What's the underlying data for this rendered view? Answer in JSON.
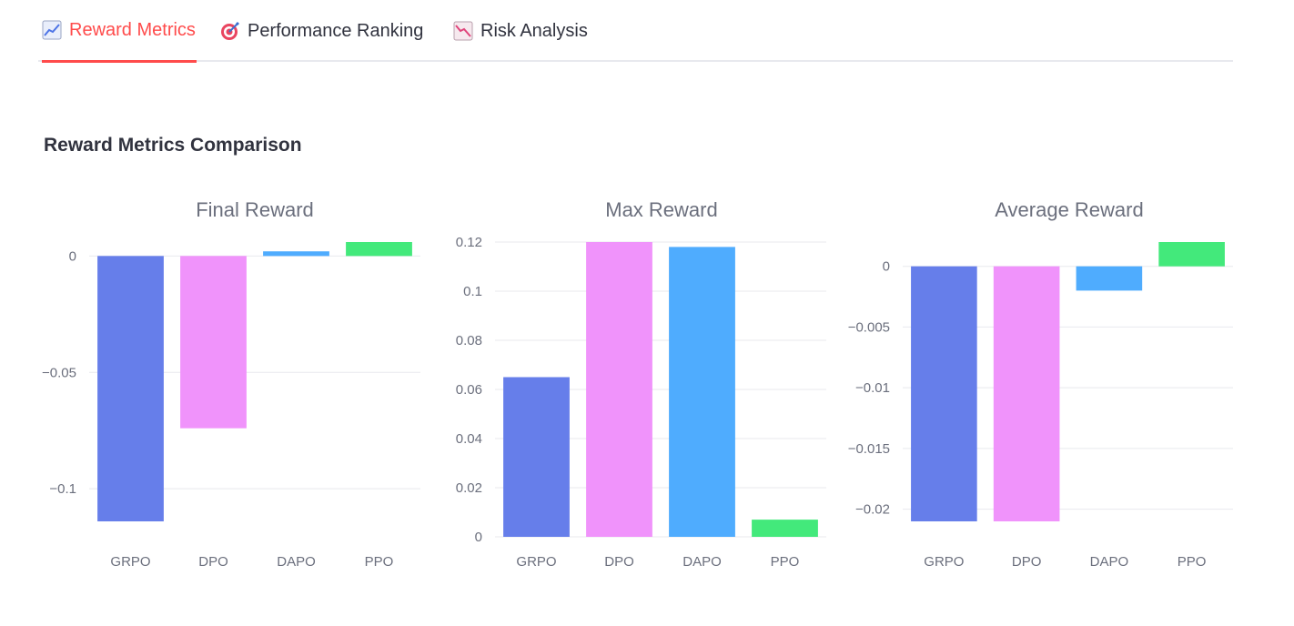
{
  "tabs": [
    {
      "label": "Reward Metrics",
      "icon": "chart-increasing-icon",
      "active": true
    },
    {
      "label": "Performance Ranking",
      "icon": "target-icon",
      "active": false
    },
    {
      "label": "Risk Analysis",
      "icon": "chart-decreasing-icon",
      "active": false
    }
  ],
  "section_title": "Reward Metrics Comparison",
  "colors": {
    "GRPO": "#667eea",
    "DPO": "#f093fb",
    "DAPO": "#4facfe",
    "PPO": "#43e97b",
    "accent": "#ff4b4b"
  },
  "chart_data": [
    {
      "type": "bar",
      "title": "Final Reward",
      "categories": [
        "GRPO",
        "DPO",
        "DAPO",
        "PPO"
      ],
      "values": [
        -0.114,
        -0.074,
        0.002,
        0.006
      ],
      "ylim": [
        -0.114,
        0.006
      ],
      "yticks": [
        0,
        -0.05,
        -0.1
      ],
      "ytick_labels": [
        "0",
        "−0.05",
        "−0.1"
      ],
      "grid": true,
      "xlabel": "",
      "ylabel": ""
    },
    {
      "type": "bar",
      "title": "Max Reward",
      "categories": [
        "GRPO",
        "DPO",
        "DAPO",
        "PPO"
      ],
      "values": [
        0.065,
        0.12,
        0.118,
        0.007
      ],
      "ylim": [
        0,
        0.12
      ],
      "yticks": [
        0,
        0.02,
        0.04,
        0.06,
        0.08,
        0.1,
        0.12
      ],
      "ytick_labels": [
        "0",
        "0.02",
        "0.04",
        "0.06",
        "0.08",
        "0.1",
        "0.12"
      ],
      "grid": true,
      "xlabel": "",
      "ylabel": ""
    },
    {
      "type": "bar",
      "title": "Average Reward",
      "categories": [
        "GRPO",
        "DPO",
        "DAPO",
        "PPO"
      ],
      "values": [
        -0.021,
        -0.021,
        -0.002,
        0.002
      ],
      "ylim": [
        -0.021,
        0.002
      ],
      "yticks": [
        0,
        -0.005,
        -0.01,
        -0.015,
        -0.02
      ],
      "ytick_labels": [
        "0",
        "−0.005",
        "−0.01",
        "−0.015",
        "−0.02"
      ],
      "grid": true,
      "xlabel": "",
      "ylabel": ""
    }
  ]
}
